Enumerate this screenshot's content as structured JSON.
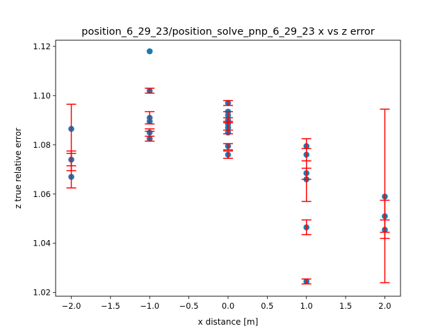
{
  "chart_data": {
    "type": "scatter",
    "title": "position_6_29_23/position_solve_pnp_6_29_23 x vs z error",
    "xlabel": "x distance [m]",
    "ylabel": "z true relative error",
    "xlim": [
      -2.2,
      2.2
    ],
    "ylim": [
      1.0185,
      1.1225
    ],
    "x_ticks": [
      -2.0,
      -1.5,
      -1.0,
      -0.5,
      0.0,
      0.5,
      1.0,
      1.5,
      2.0
    ],
    "x_tick_labels": [
      "−2.0",
      "−1.5",
      "−1.0",
      "−0.5",
      "0.0",
      "0.5",
      "1.0",
      "1.5",
      "2.0"
    ],
    "y_ticks": [
      1.02,
      1.04,
      1.06,
      1.08,
      1.1,
      1.12
    ],
    "y_tick_labels": [
      "1.02",
      "1.04",
      "1.06",
      "1.08",
      "1.10",
      "1.12"
    ],
    "grid": false,
    "legend": "none",
    "colors": {
      "points": "#1f77b4",
      "errorbars": "#ff0000"
    },
    "points": [
      {
        "x": -2,
        "y": 1.0865
      },
      {
        "x": -2,
        "y": 1.074
      },
      {
        "x": -2,
        "y": 1.067
      },
      {
        "x": -1,
        "y": 1.118
      },
      {
        "x": -1,
        "y": 1.102
      },
      {
        "x": -1,
        "y": 1.091
      },
      {
        "x": -1,
        "y": 1.0895
      },
      {
        "x": -1,
        "y": 1.085
      },
      {
        "x": -1,
        "y": 1.0825
      },
      {
        "x": 0,
        "y": 1.097
      },
      {
        "x": 0,
        "y": 1.0935
      },
      {
        "x": 0,
        "y": 1.092
      },
      {
        "x": 0,
        "y": 1.09
      },
      {
        "x": 0,
        "y": 1.0885
      },
      {
        "x": 0,
        "y": 1.087
      },
      {
        "x": 0,
        "y": 1.085
      },
      {
        "x": 0,
        "y": 1.0795
      },
      {
        "x": 0,
        "y": 1.076
      },
      {
        "x": 1,
        "y": 1.0795
      },
      {
        "x": 1,
        "y": 1.076
      },
      {
        "x": 1,
        "y": 1.0685
      },
      {
        "x": 1,
        "y": 1.066
      },
      {
        "x": 1,
        "y": 1.0465
      },
      {
        "x": 1,
        "y": 1.0245
      },
      {
        "x": 2,
        "y": 1.059
      },
      {
        "x": 2,
        "y": 1.051
      },
      {
        "x": 2,
        "y": 1.0455
      }
    ],
    "error_bars": [
      {
        "x": -2,
        "low": 1.0625,
        "high": 1.0965
      },
      {
        "x": -2,
        "low": 1.0715,
        "high": 1.0765
      },
      {
        "x": -2,
        "low": 1.0695,
        "high": 1.0775
      },
      {
        "x": -1,
        "low": 1.101,
        "high": 1.103
      },
      {
        "x": -1,
        "low": 1.0885,
        "high": 1.0935
      },
      {
        "x": -1,
        "low": 1.0815,
        "high": 1.0855
      },
      {
        "x": -1,
        "low": 1.0835,
        "high": 1.0865
      },
      {
        "x": 0,
        "low": 1.096,
        "high": 1.098
      },
      {
        "x": 0,
        "low": 1.0895,
        "high": 1.0935
      },
      {
        "x": 0,
        "low": 1.086,
        "high": 1.091
      },
      {
        "x": 0,
        "low": 1.0845,
        "high": 1.089
      },
      {
        "x": 0,
        "low": 1.078,
        "high": 1.0805
      },
      {
        "x": 0,
        "low": 1.0745,
        "high": 1.0775
      },
      {
        "x": 1,
        "low": 1.057,
        "high": 1.0825
      },
      {
        "x": 1,
        "low": 1.0735,
        "high": 1.0785
      },
      {
        "x": 1,
        "low": 1.066,
        "high": 1.0705
      },
      {
        "x": 1,
        "low": 1.0435,
        "high": 1.0495
      },
      {
        "x": 1,
        "low": 1.0235,
        "high": 1.0255
      },
      {
        "x": 2,
        "low": 1.024,
        "high": 1.0945
      },
      {
        "x": 2,
        "low": 1.042,
        "high": 1.0575
      },
      {
        "x": 2,
        "low": 1.0445,
        "high": 1.0495
      }
    ]
  }
}
